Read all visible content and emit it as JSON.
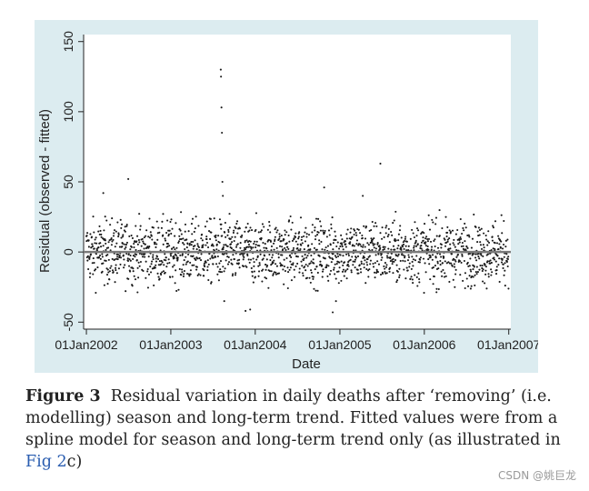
{
  "chart_data": {
    "type": "scatter",
    "xlabel": "Date",
    "ylabel": "Residual (observed - fitted)",
    "x_range": [
      "2001-12-20",
      "2007-01-10"
    ],
    "ylim": [
      -55,
      155
    ],
    "x_ticks": [
      "01Jan2002",
      "01Jan2003",
      "01Jan2004",
      "01Jan2005",
      "01Jan2006",
      "01Jan2007"
    ],
    "x_tick_dates": [
      "2002-01-01",
      "2003-01-01",
      "2004-01-01",
      "2005-01-01",
      "2006-01-01",
      "2007-01-01"
    ],
    "y_ticks": [
      -50,
      0,
      50,
      100,
      150
    ],
    "reference_line_y": 0,
    "grid": false,
    "outliers": [
      {
        "x": "2002-03-15",
        "y": 42
      },
      {
        "x": "2002-07-01",
        "y": 52
      },
      {
        "x": "2003-08-05",
        "y": 130
      },
      {
        "x": "2003-08-06",
        "y": 125
      },
      {
        "x": "2003-08-08",
        "y": 103
      },
      {
        "x": "2003-08-10",
        "y": 85
      },
      {
        "x": "2003-08-12",
        "y": 50
      },
      {
        "x": "2003-08-14",
        "y": 40
      },
      {
        "x": "2003-08-20",
        "y": -35
      },
      {
        "x": "2003-11-20",
        "y": -42
      },
      {
        "x": "2003-12-10",
        "y": -41
      },
      {
        "x": "2004-10-25",
        "y": 46
      },
      {
        "x": "2004-12-01",
        "y": -43
      },
      {
        "x": "2004-12-15",
        "y": -35
      },
      {
        "x": "2005-06-25",
        "y": 63
      },
      {
        "x": "2005-04-10",
        "y": 40
      }
    ],
    "bulk": {
      "description_count": 1800,
      "typical_min": -30,
      "typical_max": 30
    }
  },
  "caption": {
    "label": "Figure 3",
    "text_before_link": "Residual variation in daily deaths after ‘removing’ (i.e. modelling) season and long-term trend. Fitted values were from a spline model for season and long-term trend only (as illustrated in ",
    "link": "Fig 2",
    "text_after_link": "c)"
  },
  "watermark": "CSDN @姚巨龙",
  "colors": {
    "panel": "#dcecf0",
    "plot": "#ffffff",
    "points": "#1a1a1a",
    "refline": "#7a7a7a"
  }
}
